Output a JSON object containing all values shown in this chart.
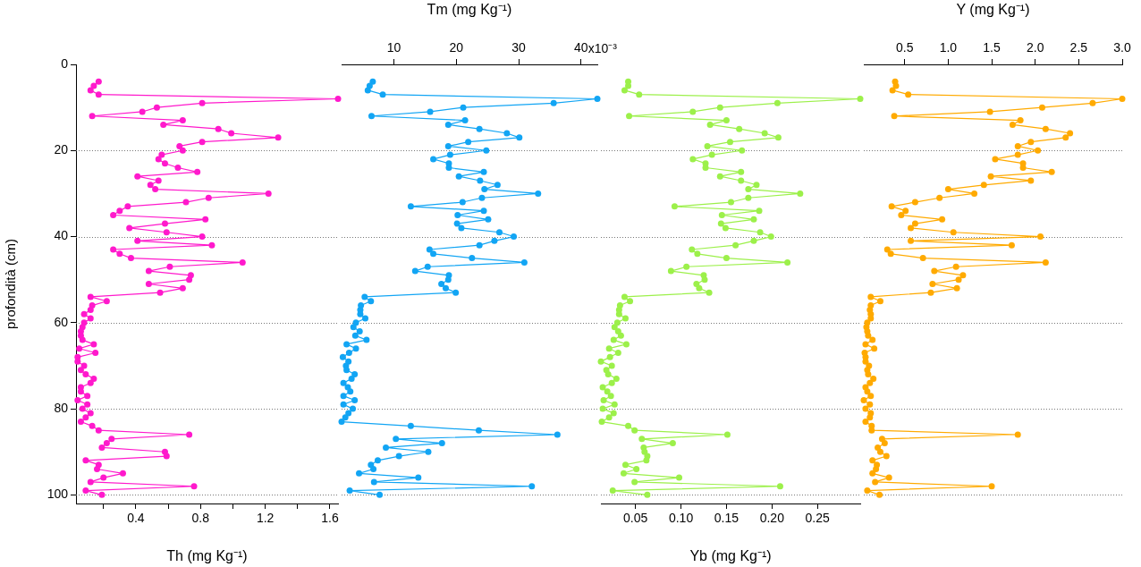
{
  "chart_data": [
    {
      "type": "line",
      "xlabel": "Th (mg Kg⁻¹)",
      "ylabel": "profondità (cm)",
      "marker": "circle",
      "grid": "y",
      "xlim": [
        0.03,
        1.65
      ],
      "xticks": [
        {
          "value": 0.2,
          "label": null
        },
        0.4,
        {
          "value": 0.6,
          "label": null
        },
        0.8,
        {
          "value": 1.0,
          "label": null
        },
        1.2,
        {
          "value": 1.4,
          "label": null
        },
        1.6
      ],
      "ylim": [
        102,
        0
      ],
      "yticks": [
        0,
        20,
        40,
        60,
        80,
        100
      ],
      "series": [
        {
          "color": "#ff19cc",
          "x": [
            0.17,
            0.14,
            0.12,
            0.17,
            1.65,
            0.81,
            0.53,
            0.44,
            0.13,
            0.69,
            0.57,
            0.91,
            0.99,
            1.28,
            0.81,
            0.67,
            0.69,
            0.56,
            0.54,
            0.58,
            0.66,
            0.78,
            0.41,
            0.54,
            0.49,
            0.52,
            1.22,
            0.85,
            0.71,
            0.35,
            0.3,
            0.26,
            0.83,
            0.58,
            0.36,
            0.59,
            0.81,
            0.41,
            0.87,
            0.26,
            0.3,
            0.37,
            1.06,
            0.61,
            0.48,
            0.74,
            0.73,
            0.48,
            0.69,
            0.55,
            0.12,
            0.22,
            0.13,
            0.12,
            0.08,
            0.12,
            0.08,
            0.07,
            0.06,
            0.06,
            0.07,
            0.14,
            0.05,
            0.15,
            0.04,
            0.04,
            0.08,
            0.06,
            0.09,
            0.14,
            0.12,
            0.06,
            0.06,
            0.1,
            0.04,
            0.1,
            0.07,
            0.12,
            0.09,
            0.06,
            0.13,
            0.17,
            0.73,
            0.25,
            0.22,
            0.19,
            0.58,
            0.59,
            0.09,
            0.17,
            0.16,
            0.32,
            0.2,
            0.12,
            0.76,
            0.09,
            0.19
          ],
          "values": [
            4,
            5,
            6,
            7,
            8,
            9,
            10,
            11,
            12,
            13,
            14,
            15,
            16,
            17,
            18,
            19,
            20,
            21,
            22,
            23,
            24,
            25,
            26,
            27,
            28,
            29,
            30,
            31,
            32,
            33,
            34,
            35,
            36,
            37,
            38,
            39,
            40,
            41,
            42,
            43,
            44,
            45,
            46,
            47,
            48,
            49,
            50,
            51,
            52,
            53,
            54,
            55,
            56,
            57,
            58,
            59,
            60,
            61,
            62,
            63,
            64,
            65,
            66,
            67,
            68,
            69,
            70,
            71,
            72,
            73,
            74,
            75,
            76,
            77,
            78,
            79,
            80,
            81,
            82,
            83,
            84,
            85,
            86,
            87,
            88,
            89,
            90,
            91,
            92,
            93,
            94,
            95,
            96,
            97,
            98,
            99,
            100
          ]
        }
      ]
    },
    {
      "type": "line",
      "xlabel": "Tm (mg Kg⁻¹)",
      "marker": "circle",
      "grid": "y",
      "tick_labels": "x",
      "xlim": [
        1.6,
        42.6
      ],
      "xticks": [
        10,
        20,
        30,
        40
      ],
      "annotations": [
        "x10⁻³"
      ],
      "yticks": [
        0,
        20,
        40,
        60,
        80,
        100
      ],
      "series": [
        {
          "color": "#12a5f4",
          "x": [
            6.6,
            6.1,
            5.8,
            8.2,
            42.6,
            35.6,
            21.1,
            15.8,
            6.4,
            21.4,
            18.7,
            23.7,
            28.1,
            30.1,
            21.9,
            18.7,
            24.8,
            19.0,
            16.3,
            18.8,
            18.8,
            24.4,
            20.4,
            23.8,
            26.6,
            24.5,
            33.1,
            24.1,
            21.0,
            12.7,
            24.4,
            20.2,
            25.1,
            20.1,
            20.8,
            26.9,
            29.2,
            26.1,
            23.7,
            15.7,
            16.3,
            22.5,
            30.9,
            15.4,
            13.4,
            18.8,
            18.7,
            17.6,
            18.3,
            19.9,
            5.3,
            6.3,
            4.7,
            4.6,
            4.6,
            5.4,
            3.9,
            3.5,
            4.5,
            3.8,
            5.6,
            2.4,
            3.9,
            2.8,
            1.8,
            2.7,
            2.3,
            2.4,
            3.7,
            3.2,
            1.9,
            2.6,
            3.0,
            1.9,
            3.7,
            1.9,
            3.4,
            2.7,
            2.2,
            1.6,
            12.7,
            23.6,
            36.2,
            10.3,
            17.7,
            8.7,
            15.5,
            10.8,
            7.4,
            6.3,
            6.7,
            4.4,
            13.9,
            6.8,
            32.1,
            2.9,
            7.7
          ],
          "values": [
            4,
            5,
            6,
            7,
            8,
            9,
            10,
            11,
            12,
            13,
            14,
            15,
            16,
            17,
            18,
            19,
            20,
            21,
            22,
            23,
            24,
            25,
            26,
            27,
            28,
            29,
            30,
            31,
            32,
            33,
            34,
            35,
            36,
            37,
            38,
            39,
            40,
            41,
            42,
            43,
            44,
            45,
            46,
            47,
            48,
            49,
            50,
            51,
            52,
            53,
            54,
            55,
            56,
            57,
            58,
            59,
            60,
            61,
            62,
            63,
            64,
            65,
            66,
            67,
            68,
            69,
            70,
            71,
            72,
            73,
            74,
            75,
            76,
            77,
            78,
            79,
            80,
            81,
            82,
            83,
            84,
            85,
            86,
            87,
            88,
            89,
            90,
            91,
            92,
            93,
            94,
            95,
            96,
            97,
            98,
            99,
            100
          ]
        }
      ]
    },
    {
      "type": "line",
      "xlabel": "Yb (mg Kg⁻¹)",
      "marker": "circle",
      "grid": "y",
      "tick_labels": "x",
      "xlim": [
        0.012,
        0.297
      ],
      "xticks": [
        {
          "value": 0.05,
          "label": "0.05"
        },
        {
          "value": 0.1,
          "label": "0.10"
        },
        {
          "value": 0.15,
          "label": "0.15"
        },
        {
          "value": 0.2,
          "label": "0.20"
        },
        {
          "value": 0.25,
          "label": "0.25"
        }
      ],
      "yticks": [
        0,
        20,
        40,
        60,
        80,
        100
      ],
      "series": [
        {
          "color": "#9cf04a",
          "x": [
            0.042,
            0.042,
            0.038,
            0.054,
            0.297,
            0.206,
            0.143,
            0.113,
            0.043,
            0.15,
            0.132,
            0.164,
            0.192,
            0.207,
            0.154,
            0.129,
            0.167,
            0.134,
            0.113,
            0.127,
            0.127,
            0.166,
            0.143,
            0.166,
            0.183,
            0.174,
            0.231,
            0.174,
            0.155,
            0.093,
            0.186,
            0.145,
            0.18,
            0.144,
            0.149,
            0.187,
            0.199,
            0.18,
            0.16,
            0.112,
            0.118,
            0.15,
            0.217,
            0.106,
            0.089,
            0.125,
            0.126,
            0.117,
            0.12,
            0.131,
            0.038,
            0.044,
            0.033,
            0.032,
            0.032,
            0.039,
            0.03,
            0.027,
            0.031,
            0.034,
            0.026,
            0.04,
            0.021,
            0.031,
            0.022,
            0.012,
            0.024,
            0.018,
            0.02,
            0.029,
            0.024,
            0.014,
            0.019,
            0.023,
            0.015,
            0.027,
            0.014,
            0.026,
            0.021,
            0.013,
            0.042,
            0.049,
            0.151,
            0.057,
            0.091,
            0.059,
            0.06,
            0.063,
            0.062,
            0.039,
            0.051,
            0.037,
            0.098,
            0.049,
            0.209,
            0.025,
            0.063
          ],
          "values": [
            4,
            5,
            6,
            7,
            8,
            9,
            10,
            11,
            12,
            13,
            14,
            15,
            16,
            17,
            18,
            19,
            20,
            21,
            22,
            23,
            24,
            25,
            26,
            27,
            28,
            29,
            30,
            31,
            32,
            33,
            34,
            35,
            36,
            37,
            38,
            39,
            40,
            41,
            42,
            43,
            44,
            45,
            46,
            47,
            48,
            49,
            50,
            51,
            52,
            53,
            54,
            55,
            56,
            57,
            58,
            59,
            60,
            61,
            62,
            63,
            64,
            65,
            66,
            67,
            68,
            69,
            70,
            71,
            72,
            73,
            74,
            75,
            76,
            77,
            78,
            79,
            80,
            81,
            82,
            83,
            84,
            85,
            86,
            87,
            88,
            89,
            90,
            91,
            92,
            93,
            94,
            95,
            96,
            97,
            98,
            99,
            100
          ]
        }
      ]
    },
    {
      "type": "line",
      "xlabel": "Y (mg Kg⁻¹)",
      "marker": "circle",
      "grid": "y",
      "tick_labels": "x",
      "xlim": [
        0.03,
        3.0
      ],
      "xticks": [
        0.5,
        {
          "value": 1,
          "label": "1.0"
        },
        1.5,
        {
          "value": 2,
          "label": "2.0"
        },
        2.5,
        {
          "value": 3,
          "label": "3.0"
        }
      ],
      "yticks": [
        0,
        20,
        40,
        60,
        80,
        100
      ],
      "series": [
        {
          "color": "#ffaa00",
          "x": [
            0.39,
            0.4,
            0.36,
            0.54,
            3.0,
            2.66,
            2.08,
            1.48,
            0.38,
            1.83,
            1.74,
            2.12,
            2.4,
            2.35,
            1.95,
            1.8,
            2.03,
            1.8,
            1.54,
            1.86,
            1.86,
            2.19,
            1.49,
            1.95,
            1.41,
            1.0,
            1.3,
            0.9,
            0.62,
            0.35,
            0.51,
            0.46,
            0.93,
            0.62,
            0.57,
            1.06,
            2.06,
            0.57,
            1.73,
            0.3,
            0.34,
            0.71,
            2.12,
            1.09,
            0.84,
            1.17,
            1.12,
            0.82,
            1.1,
            0.8,
            0.11,
            0.22,
            0.11,
            0.1,
            0.11,
            0.11,
            0.07,
            0.06,
            0.07,
            0.08,
            0.13,
            0.05,
            0.15,
            0.04,
            0.05,
            0.05,
            0.09,
            0.07,
            0.08,
            0.14,
            0.1,
            0.05,
            0.07,
            0.11,
            0.03,
            0.1,
            0.05,
            0.11,
            0.1,
            0.05,
            0.12,
            0.12,
            1.8,
            0.24,
            0.27,
            0.19,
            0.22,
            0.29,
            0.13,
            0.18,
            0.17,
            0.13,
            0.32,
            0.16,
            1.5,
            0.07,
            0.21
          ],
          "values": [
            4,
            5,
            6,
            7,
            8,
            9,
            10,
            11,
            12,
            13,
            14,
            15,
            16,
            17,
            18,
            19,
            20,
            21,
            22,
            23,
            24,
            25,
            26,
            27,
            28,
            29,
            30,
            31,
            32,
            33,
            34,
            35,
            36,
            37,
            38,
            39,
            40,
            41,
            42,
            43,
            44,
            45,
            46,
            47,
            48,
            49,
            50,
            51,
            52,
            53,
            54,
            55,
            56,
            57,
            58,
            59,
            60,
            61,
            62,
            63,
            64,
            65,
            66,
            67,
            68,
            69,
            70,
            71,
            72,
            73,
            74,
            75,
            76,
            77,
            78,
            79,
            80,
            81,
            82,
            83,
            84,
            85,
            86,
            87,
            88,
            89,
            90,
            91,
            92,
            93,
            94,
            95,
            96,
            97,
            98,
            99,
            100
          ]
        }
      ]
    }
  ]
}
